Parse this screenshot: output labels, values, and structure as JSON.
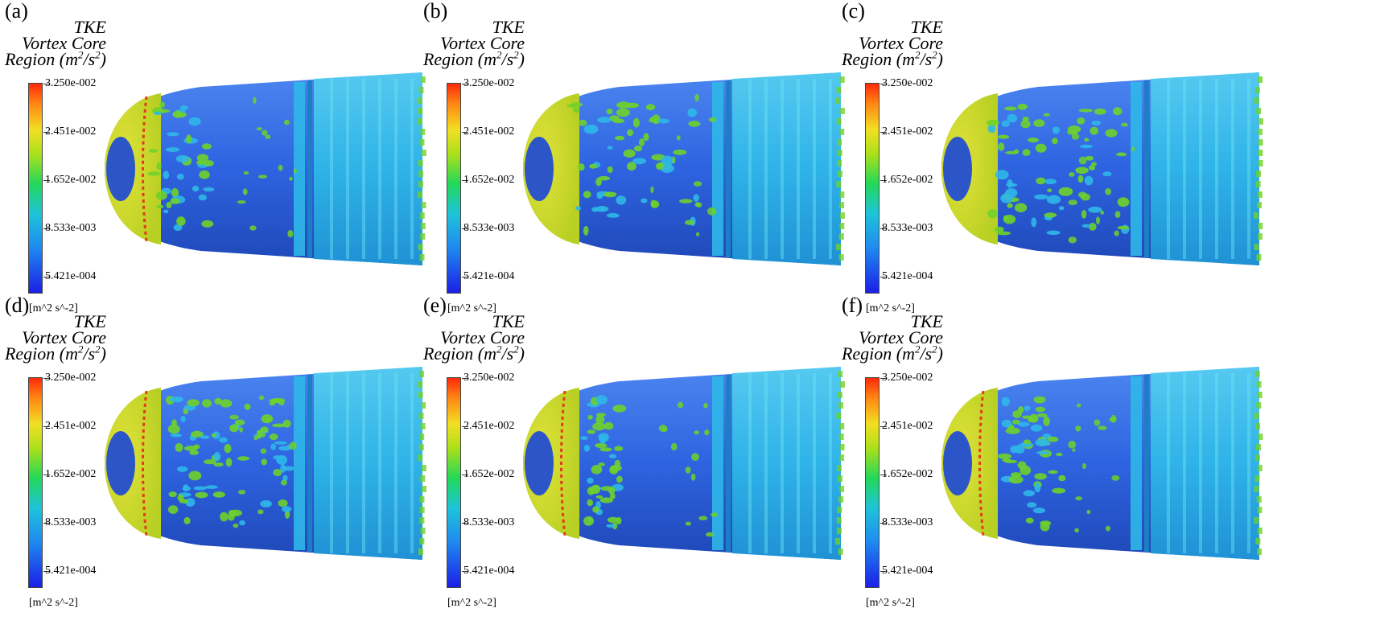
{
  "figure": {
    "title_lines": [
      "TKE",
      "Vortex Core"
    ],
    "title_region_prefix": "Region (m",
    "title_region_mid": "/s",
    "title_region_suffix": ")",
    "title_sup": "2",
    "unit_label": "[m^2 s^-2]",
    "colorbar_ticks": [
      "3.250e-002",
      "2.451e-002",
      "1.652e-002",
      "8.533e-003",
      "5.421e-004"
    ],
    "panels": [
      {
        "label": "(a)"
      },
      {
        "label": "(b)"
      },
      {
        "label": "(c)"
      },
      {
        "label": "(d)"
      },
      {
        "label": "(e)"
      },
      {
        "label": "(f)"
      }
    ]
  },
  "colors": {
    "body_blue": "#2e63e0",
    "nose_yellow": "#b8cf23",
    "cyan_band": "#2fb7e8",
    "green_spot": "#6fd12a",
    "red_line": "#e23a1a"
  }
}
